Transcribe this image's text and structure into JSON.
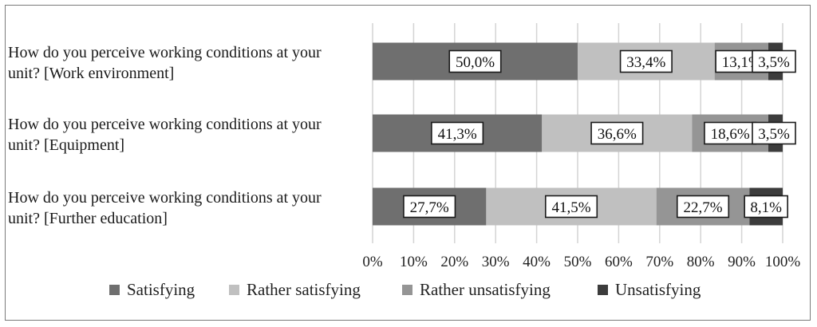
{
  "chart_data": {
    "type": "bar",
    "orientation": "horizontal",
    "stacked": "percent",
    "categories": [
      [
        "How do you perceive working conditions at your",
        "unit? [Work environment]"
      ],
      [
        "How do you perceive working conditions at your",
        "unit? [Equipment]"
      ],
      [
        "How do you perceive working conditions at your",
        "unit? [Further education]"
      ]
    ],
    "series": [
      {
        "name": "Satisfying",
        "values": [
          50.0,
          41.3,
          27.7
        ],
        "labels": [
          "50,0%",
          "41,3%",
          "27,7%"
        ],
        "color": "#6f6f6f"
      },
      {
        "name": "Rather satisfying",
        "values": [
          33.4,
          36.6,
          41.5
        ],
        "labels": [
          "33,4%",
          "36,6%",
          "41,5%"
        ],
        "color": "#c0c0c0"
      },
      {
        "name": "Rather unsatisfying",
        "values": [
          13.1,
          18.6,
          22.7
        ],
        "labels": [
          "13,1%",
          "18,6%",
          "22,7%"
        ],
        "color": "#959595"
      },
      {
        "name": "Unsatisfying",
        "values": [
          3.5,
          3.5,
          8.1
        ],
        "labels": [
          "3,5%",
          "3,5%",
          "8,1%"
        ],
        "color": "#3c3c3c"
      }
    ],
    "xlim": [
      0,
      100
    ],
    "xticks": [
      "0%",
      "10%",
      "20%",
      "30%",
      "40%",
      "50%",
      "60%",
      "70%",
      "80%",
      "90%",
      "100%"
    ],
    "grid": true,
    "legend_position": "bottom",
    "title": "",
    "xlabel": "",
    "ylabel": ""
  }
}
